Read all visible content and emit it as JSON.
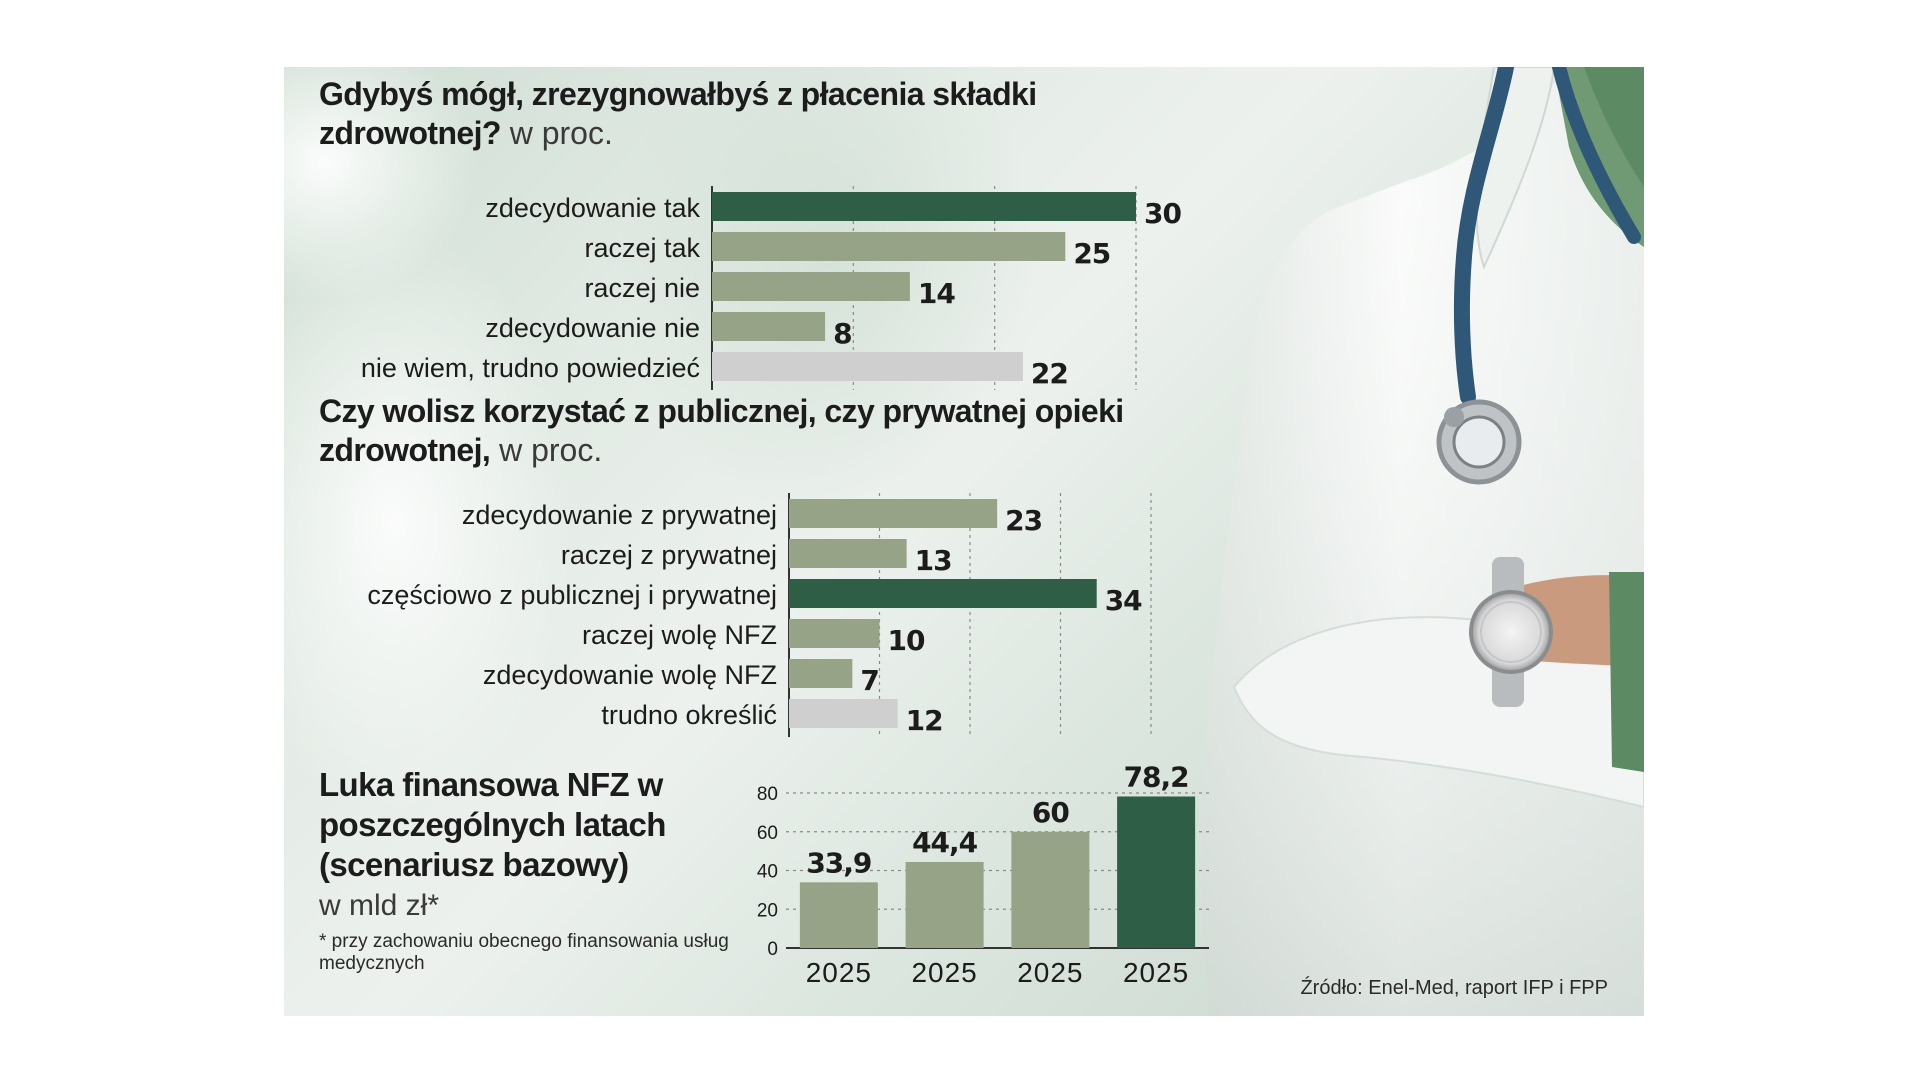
{
  "colors": {
    "dark_green": "#2e5e45",
    "light_green": "#97a387",
    "gray": "#cfcfcf"
  },
  "chart1": {
    "title": "Gdybyś mógł, zrezygnowałbyś z płacenia składki zdrowotnej?",
    "unit": " w proc."
  },
  "chart2": {
    "title": "Czy wolisz korzystać z publicznej, czy prywatnej opieki zdrowotnej,",
    "unit": " w proc."
  },
  "chart3": {
    "title": "Luka finansowa NFZ w poszczególnych latach (scenariusz bazowy)",
    "unit": "w mld zł*",
    "footnote": "* przy zachowaniu obecnego finansowania usług medycznych"
  },
  "source": "Źródło: Enel-Med, raport IFP i FPP",
  "chart_data": [
    {
      "type": "bar",
      "orientation": "horizontal",
      "title": "Gdybyś mógł, zrezygnowałbyś z płacenia składki zdrowotnej?",
      "categories": [
        "zdecydowanie tak",
        "raczej tak",
        "raczej nie",
        "zdecydowanie nie",
        "nie wiem, trudno powiedzieć"
      ],
      "values": [
        30,
        25,
        14,
        8,
        22
      ],
      "value_labels": [
        "30",
        "25",
        "14",
        "8",
        "22"
      ],
      "bar_colors": [
        "dark",
        "light",
        "light",
        "light",
        "gray"
      ],
      "xlim": [
        0,
        30
      ]
    },
    {
      "type": "bar",
      "orientation": "horizontal",
      "title": "Czy wolisz korzystać z publicznej, czy prywatnej opieki zdrowotnej,",
      "categories": [
        "zdecydowanie z prywatnej",
        "raczej z prywatnej",
        "częściowo z publicznej i prywatnej",
        "raczej wolę NFZ",
        "zdecydowanie wolę NFZ",
        "trudno określić"
      ],
      "values": [
        23,
        13,
        34,
        10,
        7,
        12
      ],
      "value_labels": [
        "23",
        "13",
        "34",
        "10",
        "7",
        "12"
      ],
      "bar_colors": [
        "light",
        "light",
        "dark",
        "light",
        "light",
        "gray"
      ],
      "xlim": [
        0,
        40
      ]
    },
    {
      "type": "bar",
      "orientation": "vertical",
      "title": "Luka finansowa NFZ w poszczególnych latach (scenariusz bazowy)",
      "ylabel": "w mld zł*",
      "categories": [
        "2025",
        "2025",
        "2025",
        "2025"
      ],
      "values": [
        33.9,
        44.4,
        60,
        78.2
      ],
      "value_labels": [
        "33,9",
        "44,4",
        "60",
        "78,2"
      ],
      "bar_colors": [
        "light",
        "light",
        "light",
        "dark"
      ],
      "yticks": [
        "0",
        "20",
        "40",
        "60",
        "80"
      ],
      "ylim": [
        0,
        80
      ]
    }
  ]
}
